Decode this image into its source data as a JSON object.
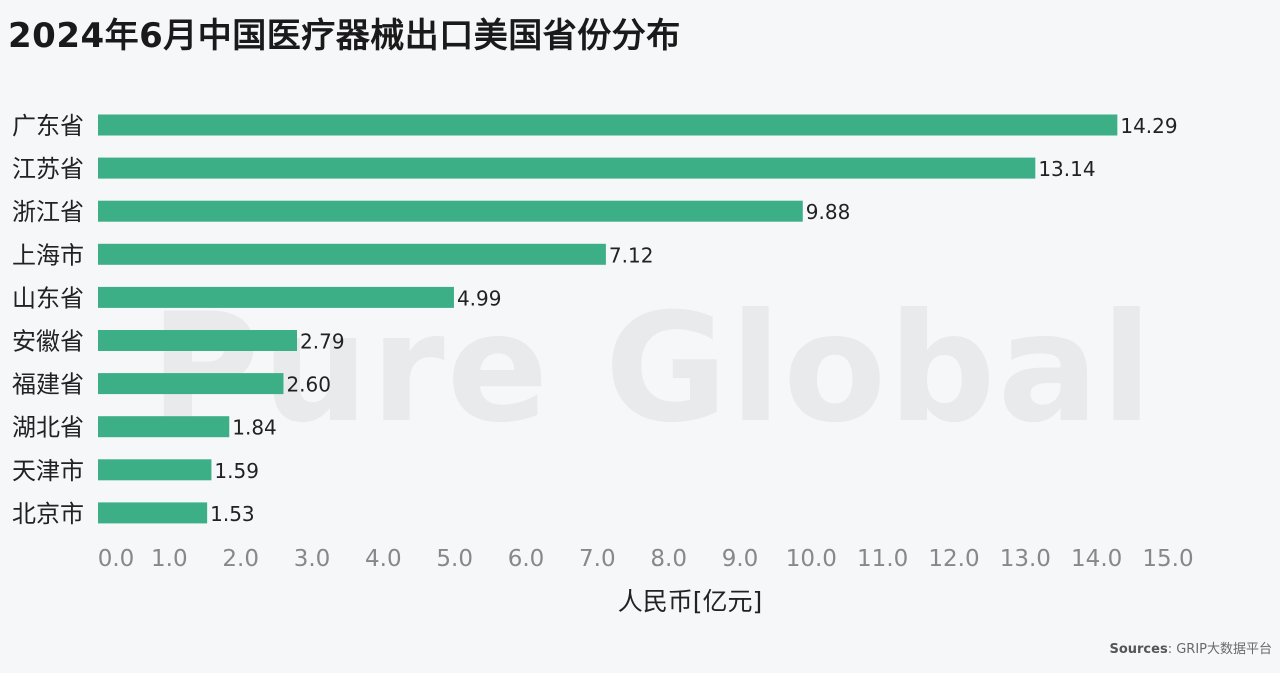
{
  "title": "2024年6月中国医疗器械出口美国省份分布",
  "watermark": "Pure Global",
  "source": {
    "label": "Sources",
    "text": ": GRIP大数据平台"
  },
  "colors": {
    "bar": "#3caf86",
    "text": "#222222",
    "tick": "#888888"
  },
  "chart_data": {
    "type": "bar",
    "orientation": "horizontal",
    "categories": [
      "广东省",
      "江苏省",
      "浙江省",
      "上海市",
      "山东省",
      "安徽省",
      "福建省",
      "湖北省",
      "天津市",
      "北京市"
    ],
    "values": [
      14.29,
      13.14,
      9.88,
      7.12,
      4.99,
      2.79,
      2.6,
      1.84,
      1.59,
      1.53
    ],
    "value_labels": [
      "14.29",
      "13.14",
      "9.88",
      "7.12",
      "4.99",
      "2.79",
      "2.60",
      "1.84",
      "1.59",
      "1.53"
    ],
    "xlabel": "人民币[亿元]",
    "xlim": [
      0,
      15
    ],
    "x_ticks": [
      "0.0",
      "1.0",
      "2.0",
      "3.0",
      "4.0",
      "5.0",
      "6.0",
      "7.0",
      "8.0",
      "9.0",
      "10.0",
      "11.0",
      "12.0",
      "13.0",
      "14.0",
      "15.0"
    ],
    "grid": false
  }
}
